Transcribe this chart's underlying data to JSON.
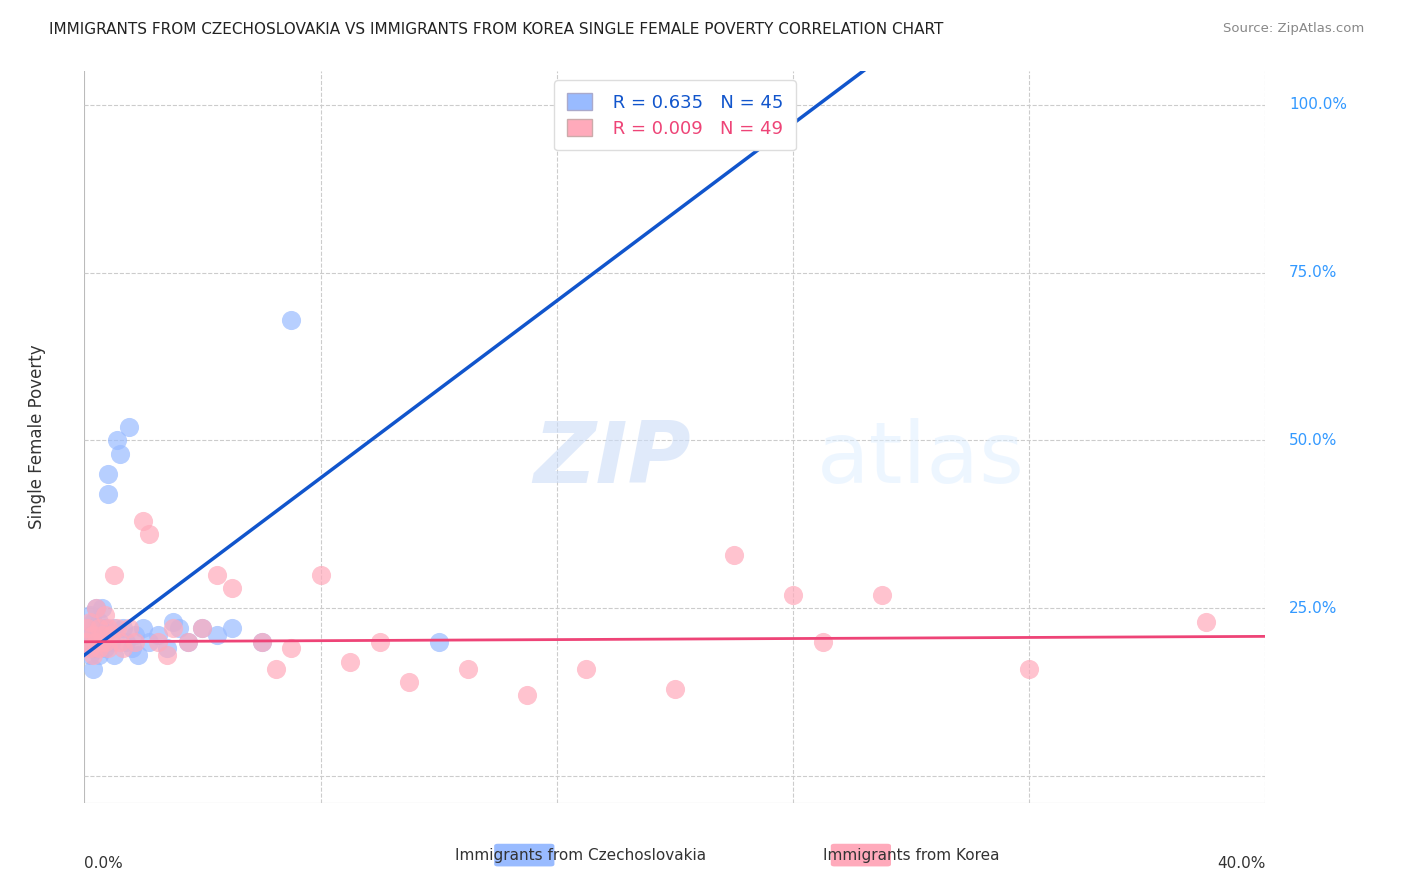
{
  "title": "IMMIGRANTS FROM CZECHOSLOVAKIA VS IMMIGRANTS FROM KOREA SINGLE FEMALE POVERTY CORRELATION CHART",
  "source": "Source: ZipAtlas.com",
  "ylabel": "Single Female Poverty",
  "legend_label1": "Immigrants from Czechoslovakia",
  "legend_label2": "Immigrants from Korea",
  "R1": 0.635,
  "N1": 45,
  "R2": 0.009,
  "N2": 49,
  "color1": "#99bbff",
  "color2": "#ffaabb",
  "trend_color1": "#1155cc",
  "trend_color2": "#ee4477",
  "background_color": "#ffffff",
  "xmin": 0.0,
  "xmax": 0.4,
  "ymin": -0.04,
  "ymax": 1.05,
  "yticks": [
    0.0,
    0.25,
    0.5,
    0.75,
    1.0
  ],
  "ytick_labels": [
    "",
    "25.0%",
    "50.0%",
    "75.0%",
    "100.0%"
  ],
  "czecho_x": [
    0.001,
    0.001,
    0.002,
    0.002,
    0.002,
    0.003,
    0.003,
    0.003,
    0.003,
    0.004,
    0.004,
    0.005,
    0.005,
    0.005,
    0.006,
    0.006,
    0.007,
    0.007,
    0.008,
    0.008,
    0.009,
    0.01,
    0.01,
    0.011,
    0.012,
    0.013,
    0.014,
    0.015,
    0.016,
    0.017,
    0.018,
    0.02,
    0.022,
    0.025,
    0.028,
    0.03,
    0.032,
    0.035,
    0.04,
    0.045,
    0.05,
    0.06,
    0.07,
    0.12,
    0.2
  ],
  "czecho_y": [
    0.2,
    0.22,
    0.21,
    0.18,
    0.24,
    0.19,
    0.21,
    0.23,
    0.16,
    0.22,
    0.25,
    0.2,
    0.23,
    0.18,
    0.21,
    0.25,
    0.22,
    0.19,
    0.45,
    0.42,
    0.2,
    0.22,
    0.18,
    0.5,
    0.48,
    0.22,
    0.2,
    0.52,
    0.19,
    0.21,
    0.18,
    0.22,
    0.2,
    0.21,
    0.19,
    0.23,
    0.22,
    0.2,
    0.22,
    0.21,
    0.22,
    0.2,
    0.68,
    0.2,
    0.97
  ],
  "korea_x": [
    0.001,
    0.001,
    0.002,
    0.002,
    0.003,
    0.003,
    0.004,
    0.004,
    0.005,
    0.005,
    0.006,
    0.006,
    0.007,
    0.007,
    0.008,
    0.008,
    0.009,
    0.01,
    0.011,
    0.012,
    0.013,
    0.015,
    0.017,
    0.02,
    0.022,
    0.025,
    0.028,
    0.03,
    0.035,
    0.04,
    0.045,
    0.05,
    0.06,
    0.065,
    0.07,
    0.08,
    0.09,
    0.1,
    0.11,
    0.13,
    0.15,
    0.17,
    0.2,
    0.22,
    0.24,
    0.25,
    0.27,
    0.32,
    0.38
  ],
  "korea_y": [
    0.2,
    0.22,
    0.19,
    0.23,
    0.21,
    0.18,
    0.2,
    0.25,
    0.22,
    0.19,
    0.2,
    0.21,
    0.24,
    0.2,
    0.19,
    0.22,
    0.21,
    0.3,
    0.22,
    0.2,
    0.19,
    0.22,
    0.2,
    0.38,
    0.36,
    0.2,
    0.18,
    0.22,
    0.2,
    0.22,
    0.3,
    0.28,
    0.2,
    0.16,
    0.19,
    0.3,
    0.17,
    0.2,
    0.14,
    0.16,
    0.12,
    0.16,
    0.13,
    0.33,
    0.27,
    0.2,
    0.27,
    0.16,
    0.23
  ]
}
